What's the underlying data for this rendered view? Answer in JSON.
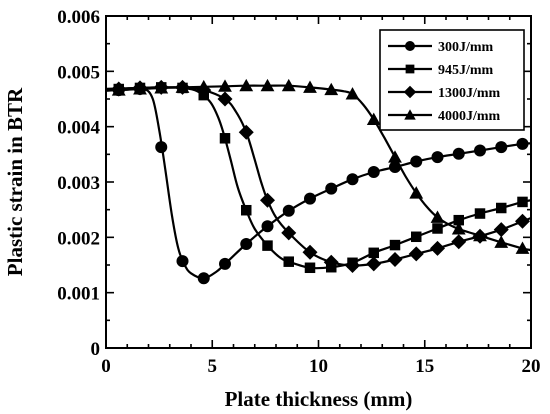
{
  "chart_data": {
    "type": "line",
    "xlabel": "Plate thickness (mm)",
    "ylabel": "Plastic strain in BTR",
    "xlim": [
      0,
      20
    ],
    "ylim": [
      0,
      0.006
    ],
    "xticks": [
      0,
      5,
      10,
      15,
      20
    ],
    "yticks": [
      0,
      0.001,
      0.002,
      0.003,
      0.004,
      0.005,
      0.006
    ],
    "ytick_labels": [
      "0",
      "0.001",
      "0.002",
      "0.003",
      "0.004",
      "0.005",
      "0.006"
    ],
    "xtick_labels": [
      "0",
      "5",
      "10",
      "15",
      "20"
    ],
    "legend_position": "top-right",
    "grid": false,
    "series": [
      {
        "name": "300J/mm",
        "marker": "circle",
        "points": [
          [
            0.6,
            0.00466
          ],
          [
            1.6,
            0.00468
          ],
          [
            2.6,
            0.00363
          ],
          [
            3.6,
            0.00157
          ],
          [
            4.6,
            0.00126
          ],
          [
            5.6,
            0.00152
          ],
          [
            6.6,
            0.00188
          ],
          [
            7.6,
            0.0022
          ],
          [
            8.6,
            0.00248
          ],
          [
            9.6,
            0.0027
          ],
          [
            10.6,
            0.00288
          ],
          [
            11.6,
            0.00305
          ],
          [
            12.6,
            0.00318
          ],
          [
            13.6,
            0.00327
          ],
          [
            14.6,
            0.00337
          ],
          [
            15.6,
            0.00345
          ],
          [
            16.6,
            0.00351
          ],
          [
            17.6,
            0.00357
          ],
          [
            18.6,
            0.00363
          ],
          [
            19.6,
            0.00369
          ]
        ],
        "curve": [
          [
            0,
            0.00465
          ],
          [
            1.0,
            0.00467
          ],
          [
            1.8,
            0.00468
          ],
          [
            2.2,
            0.0045
          ],
          [
            2.5,
            0.00395
          ],
          [
            2.8,
            0.0032
          ],
          [
            3.1,
            0.0024
          ],
          [
            3.4,
            0.0018
          ],
          [
            3.7,
            0.0015
          ],
          [
            4.0,
            0.00135
          ],
          [
            4.6,
            0.00126
          ],
          [
            5.2,
            0.00138
          ],
          [
            5.6,
            0.00152
          ],
          [
            6.6,
            0.00188
          ],
          [
            7.6,
            0.0022
          ],
          [
            8.6,
            0.00248
          ],
          [
            9.6,
            0.0027
          ],
          [
            10.6,
            0.00288
          ],
          [
            11.6,
            0.00305
          ],
          [
            12.6,
            0.00318
          ],
          [
            13.6,
            0.00327
          ],
          [
            14.6,
            0.00337
          ],
          [
            15.6,
            0.00345
          ],
          [
            16.6,
            0.00351
          ],
          [
            17.6,
            0.00357
          ],
          [
            18.6,
            0.00363
          ],
          [
            19.6,
            0.00369
          ],
          [
            20,
            0.0037
          ]
        ]
      },
      {
        "name": "945J/mm",
        "marker": "square",
        "points": [
          [
            0.6,
            0.00468
          ],
          [
            1.6,
            0.0047
          ],
          [
            2.6,
            0.00471
          ],
          [
            3.6,
            0.0047
          ],
          [
            4.6,
            0.00457
          ],
          [
            5.6,
            0.00379
          ],
          [
            6.6,
            0.00249
          ],
          [
            7.6,
            0.00185
          ],
          [
            8.6,
            0.00156
          ],
          [
            9.6,
            0.00145
          ],
          [
            10.6,
            0.00146
          ],
          [
            11.6,
            0.00154
          ],
          [
            12.6,
            0.00172
          ],
          [
            13.6,
            0.00186
          ],
          [
            14.6,
            0.00201
          ],
          [
            15.6,
            0.00216
          ],
          [
            16.6,
            0.00231
          ],
          [
            17.6,
            0.00243
          ],
          [
            18.6,
            0.00253
          ],
          [
            19.6,
            0.00264
          ]
        ],
        "curve": [
          [
            0,
            0.00468
          ],
          [
            1.6,
            0.0047
          ],
          [
            2.6,
            0.00471
          ],
          [
            3.6,
            0.0047
          ],
          [
            4.3,
            0.00464
          ],
          [
            4.9,
            0.00445
          ],
          [
            5.3,
            0.00415
          ],
          [
            5.6,
            0.00379
          ],
          [
            5.9,
            0.00335
          ],
          [
            6.2,
            0.0029
          ],
          [
            6.6,
            0.00249
          ],
          [
            7.0,
            0.00215
          ],
          [
            7.6,
            0.00185
          ],
          [
            8.2,
            0.00163
          ],
          [
            8.6,
            0.00156
          ],
          [
            9.6,
            0.00145
          ],
          [
            10.6,
            0.00146
          ],
          [
            11.6,
            0.00154
          ],
          [
            12.6,
            0.00172
          ],
          [
            13.6,
            0.00186
          ],
          [
            14.6,
            0.00201
          ],
          [
            15.6,
            0.00216
          ],
          [
            16.6,
            0.00231
          ],
          [
            17.6,
            0.00243
          ],
          [
            18.6,
            0.00253
          ],
          [
            19.6,
            0.00264
          ],
          [
            20,
            0.00267
          ]
        ]
      },
      {
        "name": "1300J/mm",
        "marker": "diamond",
        "points": [
          [
            0.6,
            0.00468
          ],
          [
            1.6,
            0.0047
          ],
          [
            2.6,
            0.00471
          ],
          [
            3.6,
            0.00471
          ],
          [
            4.6,
            0.00466
          ],
          [
            5.6,
            0.0045
          ],
          [
            6.6,
            0.0039
          ],
          [
            7.6,
            0.00267
          ],
          [
            8.6,
            0.00208
          ],
          [
            9.6,
            0.00173
          ],
          [
            10.6,
            0.00155
          ],
          [
            11.6,
            0.00149
          ],
          [
            12.6,
            0.00152
          ],
          [
            13.6,
            0.0016
          ],
          [
            14.6,
            0.0017
          ],
          [
            15.6,
            0.0018
          ],
          [
            16.6,
            0.00192
          ],
          [
            17.6,
            0.00202
          ],
          [
            18.6,
            0.00214
          ],
          [
            19.6,
            0.00229
          ]
        ],
        "curve": [
          [
            0,
            0.00468
          ],
          [
            1.6,
            0.0047
          ],
          [
            2.6,
            0.00471
          ],
          [
            3.6,
            0.00471
          ],
          [
            4.6,
            0.00466
          ],
          [
            5.6,
            0.0045
          ],
          [
            6.1,
            0.00428
          ],
          [
            6.6,
            0.0039
          ],
          [
            7.0,
            0.0034
          ],
          [
            7.3,
            0.003
          ],
          [
            7.6,
            0.00267
          ],
          [
            8.0,
            0.00236
          ],
          [
            8.6,
            0.00208
          ],
          [
            9.6,
            0.00173
          ],
          [
            10.6,
            0.00155
          ],
          [
            11.6,
            0.00149
          ],
          [
            12.6,
            0.00152
          ],
          [
            13.6,
            0.0016
          ],
          [
            14.6,
            0.0017
          ],
          [
            15.6,
            0.0018
          ],
          [
            16.6,
            0.00192
          ],
          [
            17.6,
            0.00202
          ],
          [
            18.6,
            0.00214
          ],
          [
            19.6,
            0.00229
          ],
          [
            20,
            0.00235
          ]
        ]
      },
      {
        "name": "4000J/mm",
        "marker": "triangle",
        "points": [
          [
            0.6,
            0.00466
          ],
          [
            1.6,
            0.00468
          ],
          [
            2.6,
            0.0047
          ],
          [
            3.6,
            0.00471
          ],
          [
            4.6,
            0.00472
          ],
          [
            5.6,
            0.00473
          ],
          [
            6.6,
            0.00474
          ],
          [
            7.6,
            0.00474
          ],
          [
            8.6,
            0.00474
          ],
          [
            9.6,
            0.00471
          ],
          [
            10.6,
            0.00467
          ],
          [
            11.6,
            0.00459
          ],
          [
            12.6,
            0.00413
          ],
          [
            13.6,
            0.00345
          ],
          [
            14.6,
            0.0028
          ],
          [
            15.6,
            0.00236
          ],
          [
            16.6,
            0.00215
          ],
          [
            17.6,
            0.00203
          ],
          [
            18.6,
            0.00191
          ],
          [
            19.6,
            0.0018
          ]
        ],
        "curve": [
          [
            0,
            0.00465
          ],
          [
            1.6,
            0.00468
          ],
          [
            2.6,
            0.0047
          ],
          [
            3.6,
            0.00471
          ],
          [
            4.6,
            0.00472
          ],
          [
            5.6,
            0.00473
          ],
          [
            6.6,
            0.00474
          ],
          [
            7.6,
            0.00474
          ],
          [
            8.6,
            0.00474
          ],
          [
            9.6,
            0.00471
          ],
          [
            10.6,
            0.00467
          ],
          [
            11.2,
            0.00464
          ],
          [
            11.6,
            0.00459
          ],
          [
            12.1,
            0.0044
          ],
          [
            12.6,
            0.00413
          ],
          [
            13.1,
            0.0038
          ],
          [
            13.6,
            0.00345
          ],
          [
            14.1,
            0.0031
          ],
          [
            14.6,
            0.0028
          ],
          [
            15.1,
            0.00255
          ],
          [
            15.6,
            0.00236
          ],
          [
            16.1,
            0.00224
          ],
          [
            16.6,
            0.00215
          ],
          [
            17.6,
            0.00203
          ],
          [
            18.6,
            0.00191
          ],
          [
            19.6,
            0.0018
          ],
          [
            20,
            0.00177
          ]
        ]
      }
    ]
  }
}
